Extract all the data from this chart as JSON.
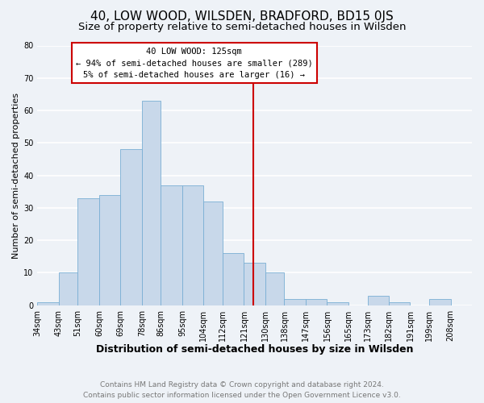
{
  "title": "40, LOW WOOD, WILSDEN, BRADFORD, BD15 0JS",
  "subtitle": "Size of property relative to semi-detached houses in Wilsden",
  "xlabel": "Distribution of semi-detached houses by size in Wilsden",
  "ylabel": "Number of semi-detached properties",
  "bin_labels": [
    "34sqm",
    "43sqm",
    "51sqm",
    "60sqm",
    "69sqm",
    "78sqm",
    "86sqm",
    "95sqm",
    "104sqm",
    "112sqm",
    "121sqm",
    "130sqm",
    "138sqm",
    "147sqm",
    "156sqm",
    "165sqm",
    "173sqm",
    "182sqm",
    "191sqm",
    "199sqm",
    "208sqm"
  ],
  "bar_values": [
    1,
    10,
    33,
    34,
    48,
    63,
    37,
    37,
    32,
    16,
    13,
    10,
    2,
    2,
    1,
    0,
    3,
    1,
    0,
    2,
    0
  ],
  "bar_color": "#c8d8ea",
  "bar_edge_color": "#7aafd4",
  "ylim": [
    0,
    80
  ],
  "yticks": [
    0,
    10,
    20,
    30,
    40,
    50,
    60,
    70,
    80
  ],
  "vline_x": 125,
  "vline_color": "#cc0000",
  "annotation_title": "40 LOW WOOD: 125sqm",
  "annotation_line1": "← 94% of semi-detached houses are smaller (289)",
  "annotation_line2": "5% of semi-detached houses are larger (16) →",
  "annotation_box_color": "#cc0000",
  "footer_line1": "Contains HM Land Registry data © Crown copyright and database right 2024.",
  "footer_line2": "Contains public sector information licensed under the Open Government Licence v3.0.",
  "background_color": "#eef2f7",
  "grid_color": "#ffffff",
  "title_fontsize": 11,
  "subtitle_fontsize": 9.5,
  "xlabel_fontsize": 9,
  "ylabel_fontsize": 8,
  "tick_fontsize": 7,
  "ann_fontsize": 7.5,
  "footer_fontsize": 6.5,
  "bin_edges": [
    34,
    43,
    51,
    60,
    69,
    78,
    86,
    95,
    104,
    112,
    121,
    130,
    138,
    147,
    156,
    165,
    173,
    182,
    191,
    199,
    208,
    217
  ]
}
